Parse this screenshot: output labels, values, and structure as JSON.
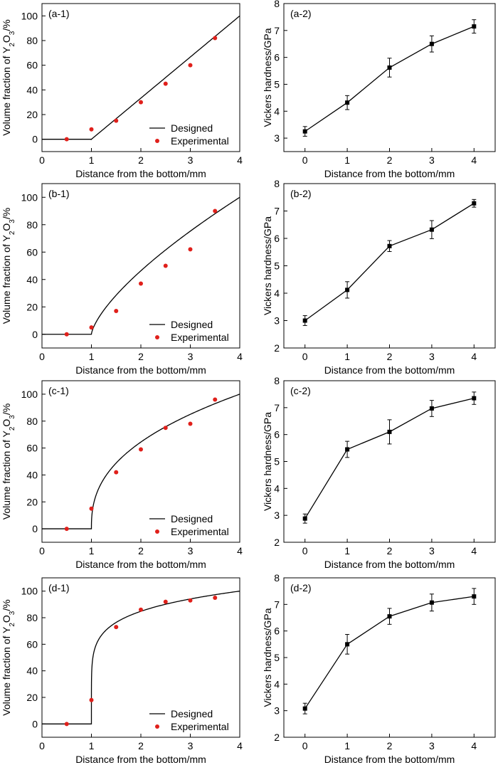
{
  "figure": {
    "common": {
      "xlabel": "Distance from the bottom/mm",
      "left_ylabel": "Volume fraction of Y2O3/%",
      "right_ylabel": "Vickers hardness/GPa",
      "legend_line": "Designed",
      "legend_points": "Experimental"
    }
  },
  "chart_data": [
    {
      "id": "a-1",
      "type": "line+scatter",
      "panel_label": "(a-1)",
      "xlim": [
        0,
        4
      ],
      "ylim": [
        -10,
        110
      ],
      "xticks": [
        0,
        1,
        2,
        3,
        4
      ],
      "yticks": [
        0,
        20,
        40,
        60,
        80,
        100
      ],
      "legend": "bottom-right",
      "series": [
        {
          "name": "Designed",
          "kind": "line",
          "color": "#000000",
          "model": "power",
          "exponent": 1
        },
        {
          "name": "Experimental",
          "kind": "scatter",
          "color": "#e0201b",
          "x": [
            0.5,
            1.0,
            1.5,
            2.0,
            2.5,
            3.0,
            3.5
          ],
          "y": [
            0,
            8,
            15,
            30,
            45,
            60,
            82
          ]
        }
      ]
    },
    {
      "id": "a-2",
      "type": "line+errorbar",
      "panel_label": "(a-2)",
      "xlim": [
        -0.5,
        4.5
      ],
      "ylim": [
        2.5,
        8
      ],
      "xticks": [
        0,
        1,
        2,
        3,
        4
      ],
      "yticks": [
        3,
        4,
        5,
        6,
        7,
        8
      ],
      "series": [
        {
          "name": "Vickers hardness",
          "color": "#000000",
          "x": [
            0,
            1,
            2,
            3,
            4
          ],
          "y": [
            3.25,
            4.32,
            5.62,
            6.5,
            7.15
          ],
          "err": [
            0.18,
            0.26,
            0.35,
            0.3,
            0.25
          ]
        }
      ]
    },
    {
      "id": "b-1",
      "type": "line+scatter",
      "panel_label": "(b-1)",
      "xlim": [
        0,
        4
      ],
      "ylim": [
        -10,
        110
      ],
      "xticks": [
        0,
        1,
        2,
        3,
        4
      ],
      "yticks": [
        0,
        20,
        40,
        60,
        80,
        100
      ],
      "legend": "bottom-right",
      "series": [
        {
          "name": "Designed",
          "kind": "line",
          "color": "#000000",
          "model": "power",
          "exponent": 0.7
        },
        {
          "name": "Experimental",
          "kind": "scatter",
          "color": "#e0201b",
          "x": [
            0.5,
            1.0,
            1.5,
            2.0,
            2.5,
            3.0,
            3.5
          ],
          "y": [
            0,
            5,
            17,
            37,
            50,
            62,
            90
          ]
        }
      ]
    },
    {
      "id": "b-2",
      "type": "line+errorbar",
      "panel_label": "(b-2)",
      "xlim": [
        -0.5,
        4.5
      ],
      "ylim": [
        2,
        8
      ],
      "xticks": [
        0,
        1,
        2,
        3,
        4
      ],
      "yticks": [
        2,
        3,
        4,
        5,
        6,
        7,
        8
      ],
      "series": [
        {
          "name": "Vickers hardness",
          "color": "#000000",
          "x": [
            0,
            1,
            2,
            3,
            4
          ],
          "y": [
            3.0,
            4.12,
            5.72,
            6.32,
            7.28
          ],
          "err": [
            0.18,
            0.3,
            0.2,
            0.33,
            0.14
          ]
        }
      ]
    },
    {
      "id": "c-1",
      "type": "line+scatter",
      "panel_label": "(c-1)",
      "xlim": [
        0,
        4
      ],
      "ylim": [
        -10,
        110
      ],
      "xticks": [
        0,
        1,
        2,
        3,
        4
      ],
      "yticks": [
        0,
        20,
        40,
        60,
        80,
        100
      ],
      "legend": "bottom-right",
      "series": [
        {
          "name": "Designed",
          "kind": "line",
          "color": "#000000",
          "model": "power",
          "exponent": 0.4
        },
        {
          "name": "Experimental",
          "kind": "scatter",
          "color": "#e0201b",
          "x": [
            0.5,
            1.0,
            1.5,
            2.0,
            2.5,
            3.0,
            3.5
          ],
          "y": [
            0,
            15,
            42,
            59,
            75,
            78,
            96
          ]
        }
      ]
    },
    {
      "id": "c-2",
      "type": "line+errorbar",
      "panel_label": "(c-2)",
      "xlim": [
        -0.5,
        4.5
      ],
      "ylim": [
        2,
        8
      ],
      "xticks": [
        0,
        1,
        2,
        3,
        4
      ],
      "yticks": [
        2,
        3,
        4,
        5,
        6,
        7,
        8
      ],
      "series": [
        {
          "name": "Vickers hardness",
          "color": "#000000",
          "x": [
            0,
            1,
            2,
            3,
            4
          ],
          "y": [
            2.88,
            5.45,
            6.1,
            6.97,
            7.35
          ],
          "err": [
            0.17,
            0.3,
            0.45,
            0.3,
            0.23
          ]
        }
      ]
    },
    {
      "id": "d-1",
      "type": "line+scatter",
      "panel_label": "(d-1)",
      "xlim": [
        0,
        4
      ],
      "ylim": [
        -10,
        110
      ],
      "xticks": [
        0,
        1,
        2,
        3,
        4
      ],
      "yticks": [
        0,
        20,
        40,
        60,
        80,
        100
      ],
      "legend": "bottom-right",
      "series": [
        {
          "name": "Designed",
          "kind": "line",
          "color": "#000000",
          "model": "power",
          "exponent": 0.15
        },
        {
          "name": "Experimental",
          "kind": "scatter",
          "color": "#e0201b",
          "x": [
            0.5,
            1.0,
            1.5,
            2.0,
            2.5,
            3.0,
            3.5
          ],
          "y": [
            0,
            18,
            73,
            86,
            92,
            93,
            95
          ]
        }
      ]
    },
    {
      "id": "d-2",
      "type": "line+errorbar",
      "panel_label": "(d-2)",
      "xlim": [
        -0.5,
        4.5
      ],
      "ylim": [
        2,
        8
      ],
      "xticks": [
        0,
        1,
        2,
        3,
        4
      ],
      "yticks": [
        2,
        3,
        4,
        5,
        6,
        7,
        8
      ],
      "series": [
        {
          "name": "Vickers hardness",
          "color": "#000000",
          "x": [
            0,
            1,
            2,
            3,
            4
          ],
          "y": [
            3.08,
            5.5,
            6.55,
            7.07,
            7.3
          ],
          "err": [
            0.2,
            0.37,
            0.3,
            0.32,
            0.3
          ]
        }
      ]
    }
  ]
}
